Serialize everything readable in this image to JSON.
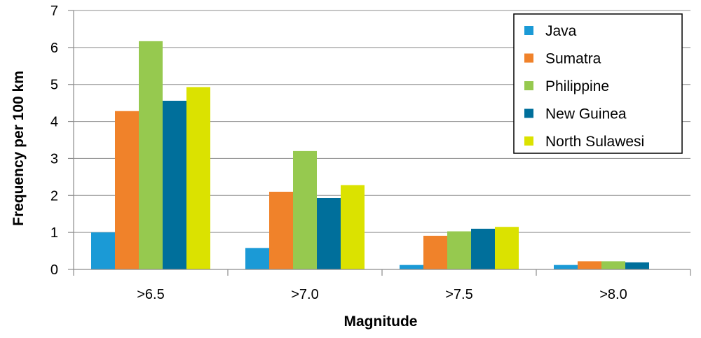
{
  "chart_data": {
    "type": "bar",
    "title": "",
    "xlabel": "Magnitude",
    "ylabel": "Frequency per 100 km",
    "categories": [
      ">6.5",
      ">7.0",
      ">7.5",
      ">8.0"
    ],
    "ylim": [
      0,
      7
    ],
    "yticks": [
      0,
      1,
      2,
      3,
      4,
      5,
      6,
      7
    ],
    "grid": true,
    "legend_position": "top-right",
    "series": [
      {
        "name": "Java",
        "color": "#1b9ad6",
        "values": [
          1.0,
          0.58,
          0.12,
          0.12
        ]
      },
      {
        "name": "Sumatra",
        "color": "#f0822a",
        "values": [
          4.28,
          2.1,
          0.91,
          0.22
        ]
      },
      {
        "name": "Philippine",
        "color": "#96c94f",
        "values": [
          6.17,
          3.2,
          1.03,
          0.22
        ]
      },
      {
        "name": "New Guinea",
        "color": "#006f9b",
        "values": [
          4.56,
          1.93,
          1.1,
          0.19
        ]
      },
      {
        "name": "North Sulawesi",
        "color": "#dbe200",
        "values": [
          4.93,
          2.28,
          1.15,
          null
        ]
      }
    ]
  }
}
